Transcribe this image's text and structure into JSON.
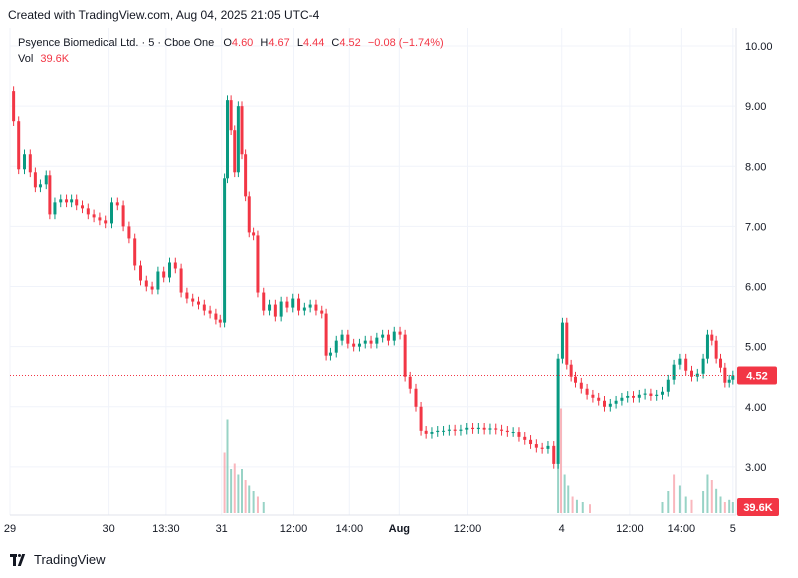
{
  "header": {
    "created": "Created with TradingView.com, Aug 04, 2025 21:05 UTC-4"
  },
  "legend": {
    "symbol": "Psyence Biomedical Ltd. · 5 · Cboe One",
    "o_label": "O",
    "o_value": "4.60",
    "h_label": "H",
    "h_value": "4.67",
    "l_label": "L",
    "l_value": "4.44",
    "c_label": "C",
    "c_value": "4.52",
    "change": "−0.08 (−1.74%)",
    "vol_label": "Vol",
    "vol_value": "39.6K"
  },
  "colors": {
    "up": "#089981",
    "down": "#f23645",
    "grid": "#f0f3fa",
    "axis_text": "#131722"
  },
  "footer": {
    "brand": "TradingView"
  },
  "chart_data": {
    "type": "candlestick",
    "y_ticks": [
      "10.00",
      "9.00",
      "8.00",
      "7.00",
      "6.00",
      "5.00",
      "4.00",
      "3.00"
    ],
    "y_tick_values": [
      10,
      9,
      8,
      7,
      6,
      5,
      4,
      3
    ],
    "ylim": [
      2.2,
      10.3
    ],
    "x_ticks": [
      {
        "label": "29",
        "pos": 0.0
      },
      {
        "label": "30",
        "pos": 0.136
      },
      {
        "label": "13:30",
        "pos": 0.215
      },
      {
        "label": "31",
        "pos": 0.292
      },
      {
        "label": "12:00",
        "pos": 0.391
      },
      {
        "label": "14:00",
        "pos": 0.468
      },
      {
        "label": "Aug",
        "pos": 0.537
      },
      {
        "label": "12:00",
        "pos": 0.631
      },
      {
        "label": "4",
        "pos": 0.761
      },
      {
        "label": "12:00",
        "pos": 0.855
      },
      {
        "label": "14:00",
        "pos": 0.926
      },
      {
        "label": "5",
        "pos": 0.997
      }
    ],
    "bold_ticks": [
      "Aug"
    ],
    "last_price": 4.52,
    "last_price_label": "4.52",
    "last_volume_label": "39.6K",
    "price_path": [
      [
        0.0,
        9.25
      ],
      [
        0.005,
        8.75
      ],
      [
        0.012,
        7.95
      ],
      [
        0.02,
        8.2
      ],
      [
        0.028,
        7.9
      ],
      [
        0.035,
        7.65
      ],
      [
        0.042,
        7.7
      ],
      [
        0.05,
        7.85
      ],
      [
        0.055,
        7.2
      ],
      [
        0.062,
        7.4
      ],
      [
        0.07,
        7.45
      ],
      [
        0.078,
        7.4
      ],
      [
        0.085,
        7.45
      ],
      [
        0.092,
        7.35
      ],
      [
        0.1,
        7.3
      ],
      [
        0.108,
        7.2
      ],
      [
        0.116,
        7.15
      ],
      [
        0.124,
        7.1
      ],
      [
        0.132,
        7.05
      ],
      [
        0.14,
        7.4
      ],
      [
        0.148,
        7.35
      ],
      [
        0.156,
        7.0
      ],
      [
        0.164,
        6.8
      ],
      [
        0.172,
        6.35
      ],
      [
        0.18,
        6.1
      ],
      [
        0.188,
        6.0
      ],
      [
        0.196,
        5.95
      ],
      [
        0.204,
        6.25
      ],
      [
        0.212,
        6.15
      ],
      [
        0.22,
        6.4
      ],
      [
        0.228,
        6.3
      ],
      [
        0.236,
        5.9
      ],
      [
        0.244,
        5.8
      ],
      [
        0.252,
        5.75
      ],
      [
        0.26,
        5.7
      ],
      [
        0.268,
        5.6
      ],
      [
        0.276,
        5.55
      ],
      [
        0.284,
        5.45
      ],
      [
        0.29,
        5.4
      ],
      [
        0.296,
        7.8
      ],
      [
        0.3,
        9.1
      ],
      [
        0.305,
        8.6
      ],
      [
        0.31,
        7.9
      ],
      [
        0.315,
        9.0
      ],
      [
        0.32,
        8.2
      ],
      [
        0.325,
        7.5
      ],
      [
        0.33,
        6.9
      ],
      [
        0.336,
        6.85
      ],
      [
        0.342,
        5.9
      ],
      [
        0.35,
        5.6
      ],
      [
        0.358,
        5.7
      ],
      [
        0.366,
        5.5
      ],
      [
        0.374,
        5.75
      ],
      [
        0.382,
        5.65
      ],
      [
        0.39,
        5.8
      ],
      [
        0.398,
        5.6
      ],
      [
        0.406,
        5.65
      ],
      [
        0.414,
        5.7
      ],
      [
        0.422,
        5.6
      ],
      [
        0.43,
        5.55
      ],
      [
        0.436,
        4.85
      ],
      [
        0.442,
        4.9
      ],
      [
        0.45,
        5.1
      ],
      [
        0.458,
        5.2
      ],
      [
        0.466,
        5.05
      ],
      [
        0.474,
        5.0
      ],
      [
        0.482,
        5.05
      ],
      [
        0.49,
        5.1
      ],
      [
        0.498,
        5.05
      ],
      [
        0.506,
        5.15
      ],
      [
        0.514,
        5.2
      ],
      [
        0.522,
        5.1
      ],
      [
        0.53,
        5.25
      ],
      [
        0.538,
        5.2
      ],
      [
        0.545,
        4.5
      ],
      [
        0.552,
        4.3
      ],
      [
        0.56,
        4.0
      ],
      [
        0.567,
        3.6
      ],
      [
        0.574,
        3.55
      ],
      [
        0.582,
        3.58
      ],
      [
        0.59,
        3.6
      ],
      [
        0.598,
        3.6
      ],
      [
        0.606,
        3.62
      ],
      [
        0.614,
        3.6
      ],
      [
        0.622,
        3.62
      ],
      [
        0.63,
        3.65
      ],
      [
        0.638,
        3.63
      ],
      [
        0.646,
        3.65
      ],
      [
        0.654,
        3.62
      ],
      [
        0.662,
        3.64
      ],
      [
        0.67,
        3.62
      ],
      [
        0.678,
        3.6
      ],
      [
        0.686,
        3.58
      ],
      [
        0.694,
        3.58
      ],
      [
        0.702,
        3.5
      ],
      [
        0.71,
        3.45
      ],
      [
        0.718,
        3.38
      ],
      [
        0.726,
        3.32
      ],
      [
        0.734,
        3.3
      ],
      [
        0.742,
        3.35
      ],
      [
        0.75,
        3.05
      ],
      [
        0.756,
        4.8
      ],
      [
        0.762,
        5.4
      ],
      [
        0.768,
        4.7
      ],
      [
        0.774,
        4.5
      ],
      [
        0.78,
        4.4
      ],
      [
        0.788,
        4.3
      ],
      [
        0.796,
        4.2
      ],
      [
        0.804,
        4.15
      ],
      [
        0.812,
        4.1
      ],
      [
        0.82,
        4.0
      ],
      [
        0.828,
        4.05
      ],
      [
        0.836,
        4.1
      ],
      [
        0.844,
        4.15
      ],
      [
        0.852,
        4.18
      ],
      [
        0.86,
        4.15
      ],
      [
        0.868,
        4.2
      ],
      [
        0.876,
        4.22
      ],
      [
        0.884,
        4.18
      ],
      [
        0.892,
        4.2
      ],
      [
        0.9,
        4.25
      ],
      [
        0.908,
        4.45
      ],
      [
        0.916,
        4.7
      ],
      [
        0.924,
        4.8
      ],
      [
        0.932,
        4.6
      ],
      [
        0.94,
        4.5
      ],
      [
        0.948,
        4.55
      ],
      [
        0.956,
        4.8
      ],
      [
        0.962,
        5.2
      ],
      [
        0.968,
        5.1
      ],
      [
        0.974,
        4.8
      ],
      [
        0.98,
        4.65
      ],
      [
        0.986,
        4.4
      ],
      [
        0.992,
        4.45
      ],
      [
        0.997,
        4.52
      ]
    ],
    "volume_path": [
      [
        0.296,
        0.55
      ],
      [
        0.3,
        0.85
      ],
      [
        0.305,
        0.4
      ],
      [
        0.31,
        0.45
      ],
      [
        0.315,
        0.35
      ],
      [
        0.32,
        0.4
      ],
      [
        0.325,
        0.3
      ],
      [
        0.33,
        0.25
      ],
      [
        0.336,
        0.2
      ],
      [
        0.342,
        0.15
      ],
      [
        0.35,
        0.1
      ],
      [
        0.756,
        0.5
      ],
      [
        0.76,
        0.95
      ],
      [
        0.765,
        0.35
      ],
      [
        0.77,
        0.25
      ],
      [
        0.776,
        0.15
      ],
      [
        0.782,
        0.12
      ],
      [
        0.79,
        0.1
      ],
      [
        0.8,
        0.08
      ],
      [
        0.9,
        0.1
      ],
      [
        0.908,
        0.2
      ],
      [
        0.916,
        0.35
      ],
      [
        0.924,
        0.25
      ],
      [
        0.932,
        0.15
      ],
      [
        0.94,
        0.12
      ],
      [
        0.956,
        0.2
      ],
      [
        0.962,
        0.35
      ],
      [
        0.968,
        0.3
      ],
      [
        0.974,
        0.22
      ],
      [
        0.98,
        0.15
      ],
      [
        0.986,
        0.1
      ],
      [
        0.992,
        0.12
      ],
      [
        0.997,
        0.1
      ]
    ]
  }
}
